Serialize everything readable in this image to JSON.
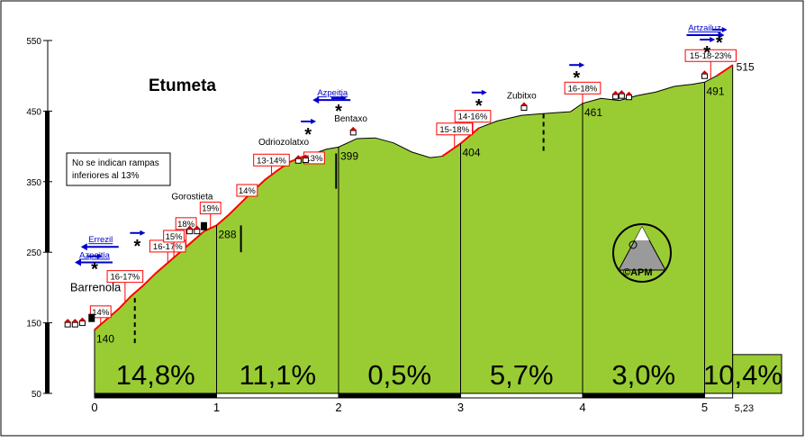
{
  "chart_data": {
    "type": "area",
    "title": "Etumeta",
    "note": [
      "No se indican rampas",
      "inferiores al 13%"
    ],
    "credit": "©APM",
    "ylim": [
      50,
      550
    ],
    "xlim": [
      0,
      5.23
    ],
    "y_ticks": [
      50,
      150,
      250,
      350,
      450,
      550
    ],
    "x_ticks": [
      0,
      1,
      2,
      3,
      4,
      5
    ],
    "x_end_label": "5,23",
    "profile": {
      "x": [
        0,
        0.1,
        0.2,
        0.3,
        0.4,
        0.5,
        0.6,
        0.7,
        0.8,
        0.9,
        1.0,
        1.1,
        1.2,
        1.3,
        1.4,
        1.5,
        1.6,
        1.7,
        1.8,
        1.9,
        2.0,
        2.15,
        2.3,
        2.45,
        2.6,
        2.75,
        2.85,
        2.95,
        3.0,
        3.15,
        3.3,
        3.5,
        3.65,
        3.8,
        3.9,
        4.0,
        4.15,
        4.3,
        4.45,
        4.6,
        4.75,
        4.9,
        5.0,
        5.1,
        5.23
      ],
      "y": [
        140,
        155,
        170,
        188,
        203,
        220,
        235,
        250,
        265,
        280,
        288,
        303,
        320,
        337,
        353,
        366,
        378,
        385,
        390,
        396,
        399,
        411,
        412,
        405,
        392,
        384,
        386,
        398,
        404,
        426,
        436,
        444,
        446,
        448,
        449,
        461,
        468,
        465,
        472,
        477,
        485,
        488,
        491,
        500,
        515
      ]
    },
    "km_points": [
      {
        "km": 0,
        "altitude": 140
      },
      {
        "km": 1,
        "altitude": 288
      },
      {
        "km": 2,
        "altitude": 399
      },
      {
        "km": 3,
        "altitude": 404
      },
      {
        "km": 4,
        "altitude": 461
      },
      {
        "km": 5,
        "altitude": 491
      },
      {
        "km": 5.23,
        "altitude": 515
      }
    ],
    "segments": [
      {
        "from": 0,
        "to": 1,
        "gradient": "14,8%"
      },
      {
        "from": 1,
        "to": 2,
        "gradient": "11,1%"
      },
      {
        "from": 2,
        "to": 3,
        "gradient": "0,5%"
      },
      {
        "from": 3,
        "to": 4,
        "gradient": "5,7%"
      },
      {
        "from": 4,
        "to": 5,
        "gradient": "3,0%"
      },
      {
        "from": 5,
        "to": 5.23,
        "gradient": "10,4%"
      }
    ],
    "places": [
      {
        "name": "Barrenola",
        "km": -0.2,
        "altitude": 195
      },
      {
        "name": "Gorostieta",
        "km": 0.8,
        "altitude": 325
      },
      {
        "name": "Odriozolatxo",
        "km": 1.55,
        "altitude": 402
      },
      {
        "name": "Bentaxo",
        "km": 2.1,
        "altitude": 435
      },
      {
        "name": "Zubitxo",
        "km": 3.5,
        "altitude": 468
      }
    ],
    "ramps": [
      {
        "label": "14%",
        "km": 0.05,
        "altitude": 165
      },
      {
        "label": "16-17%",
        "km": 0.25,
        "altitude": 215
      },
      {
        "label": "16-17%",
        "km": 0.6,
        "altitude": 258
      },
      {
        "label": "15%",
        "km": 0.65,
        "altitude": 272
      },
      {
        "label": "18%",
        "km": 0.75,
        "altitude": 290
      },
      {
        "label": "19%",
        "km": 0.95,
        "altitude": 312
      },
      {
        "label": "14%",
        "km": 1.25,
        "altitude": 337
      },
      {
        "label": "13-14%",
        "km": 1.45,
        "altitude": 380
      },
      {
        "label": "13%",
        "km": 1.8,
        "altitude": 383
      },
      {
        "label": "15-18%",
        "km": 2.95,
        "altitude": 424
      },
      {
        "label": "14-16%",
        "km": 3.1,
        "altitude": 442
      },
      {
        "label": "16-18%",
        "km": 4.0,
        "altitude": 482
      },
      {
        "label": "15-18-23%",
        "km": 5.05,
        "altitude": 528
      }
    ],
    "directions": [
      {
        "label": "Errezil",
        "km": 0.05,
        "altitude": 264,
        "arrow": "left"
      },
      {
        "label": "Azpeitia",
        "km": 0.0,
        "altitude": 242,
        "arrow": "left"
      },
      {
        "label": "Azpeitia",
        "km": 1.95,
        "altitude": 472,
        "arrow": "left"
      },
      {
        "label": "Artzailuz",
        "km": 5.0,
        "altitude": 564,
        "arrow": "right"
      }
    ],
    "junctions": [
      {
        "km": 0.0,
        "altitude": 229
      },
      {
        "km": 0.35,
        "altitude": 262
      },
      {
        "km": 1.75,
        "altitude": 420
      },
      {
        "km": 2.0,
        "altitude": 453
      },
      {
        "km": 3.15,
        "altitude": 461
      },
      {
        "km": 3.95,
        "altitude": 500
      },
      {
        "km": 5.02,
        "altitude": 536
      },
      {
        "km": 5.12,
        "altitude": 550
      }
    ]
  }
}
